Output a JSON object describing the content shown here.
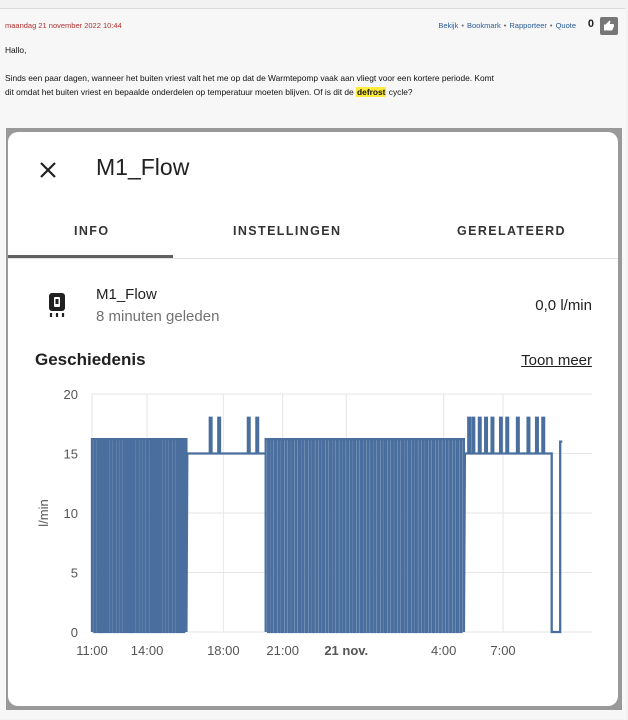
{
  "post": {
    "timestamp": "maandag 21 november 2022 10:44",
    "actions": [
      "Bekijk",
      "Bookmark",
      "Rapporteer",
      "Quote"
    ],
    "like_count": "0",
    "greeting": "Hallo,",
    "body_before": "Sinds een paar dagen, wanneer het buiten vriest valt het me op dat de Warmtepomp vaak aan vliegt voor een kortere periode. Komt dit omdat het buiten vriest en bepaalde onderdelen op temperatuur moeten blijven. Of is dit de ",
    "highlight": "defrost",
    "body_after": " cycle?"
  },
  "dialog": {
    "title": "M1_Flow",
    "tabs": [
      "INFO",
      "INSTELLINGEN",
      "GERELATEERD"
    ],
    "active_tab": "INFO",
    "entity": {
      "name": "M1_Flow",
      "last_changed": "8 minuten geleden",
      "value": "0,0 l/min"
    },
    "history_title": "Geschiedenis",
    "show_more": "Toon meer"
  },
  "colors": {
    "series": "#4a6f9e",
    "grid": "#e6e6e6",
    "highlight": "#ffeb3b"
  },
  "chart_data": {
    "type": "line",
    "ylabel": "l/min",
    "ylim": [
      0,
      20
    ],
    "yticks": [
      0,
      5,
      10,
      15,
      20
    ],
    "xticks": [
      "11:00",
      "14:00",
      "18:00",
      "21:00",
      "21 nov.",
      "4:00",
      "7:00"
    ],
    "x_unit": "hours since 11:00 (20 nov.)",
    "x_range": [
      0,
      23.6
    ],
    "xtick_positions": [
      0,
      2.6,
      6.2,
      9.0,
      12.0,
      16.6,
      19.4
    ],
    "segments": [
      {
        "type": "pulses",
        "x_start": 0.0,
        "x_end": 4.5,
        "count": 29,
        "high": 16.2,
        "low": 0
      },
      {
        "type": "steady",
        "x_start": 4.5,
        "x_end": 8.2,
        "level": 15.0,
        "spikes": [
          5.6,
          6.0,
          7.4,
          7.8
        ],
        "spike_high": 18
      },
      {
        "type": "pulses",
        "x_start": 8.2,
        "x_end": 17.6,
        "count": 58,
        "high": 16.2,
        "low": 0
      },
      {
        "type": "steady",
        "x_start": 17.6,
        "x_end": 21.7,
        "level": 15.0,
        "spikes": [
          17.8,
          18.0,
          18.3,
          18.6,
          18.9,
          19.3,
          19.6,
          20.1,
          20.6,
          21.0,
          21.3
        ],
        "spike_high": 18
      },
      {
        "type": "drop",
        "x_start": 21.7,
        "x_end": 22.1,
        "level": 0
      },
      {
        "type": "steady",
        "x_start": 22.1,
        "x_end": 22.2,
        "level": 16
      }
    ]
  }
}
